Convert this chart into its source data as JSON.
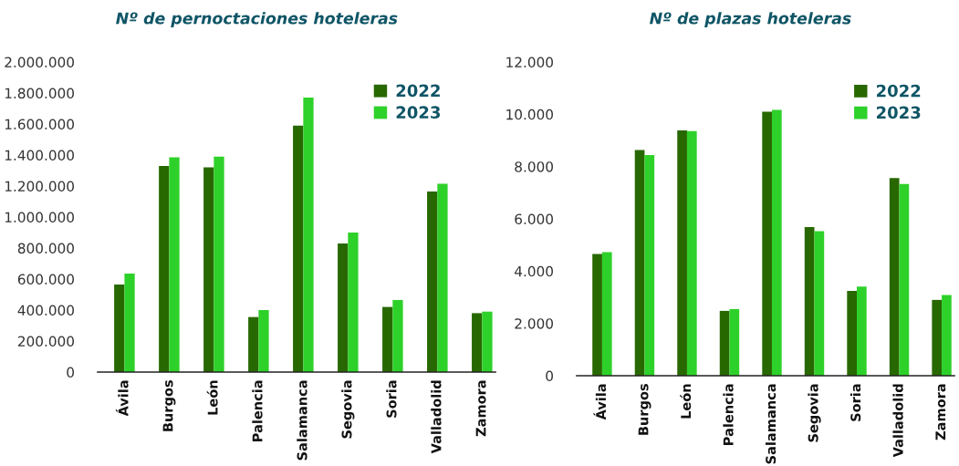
{
  "chart_data": [
    {
      "type": "bar",
      "title": "Nº de pernoctaciones hoteleras",
      "categories": [
        "Ávila",
        "Burgos",
        "León",
        "Palencia",
        "Salamanca",
        "Segovia",
        "Soria",
        "Valladolid",
        "Zamora"
      ],
      "series": [
        {
          "name": "2022",
          "color": "#286800",
          "values": [
            565000,
            1330000,
            1320000,
            355000,
            1590000,
            830000,
            420000,
            1165000,
            380000
          ]
        },
        {
          "name": "2023",
          "color": "#2ed12a",
          "values": [
            635000,
            1385000,
            1390000,
            400000,
            1770000,
            900000,
            465000,
            1215000,
            390000
          ]
        }
      ],
      "ylim": [
        0,
        2000000
      ],
      "yticks": [
        0,
        {
          "value": 200000,
          "label": "200.000"
        },
        {
          "value": 400000,
          "label": "400.000"
        },
        {
          "value": 600000,
          "label": "600.000"
        },
        {
          "value": 800000,
          "label": "800.000"
        },
        {
          "value": 1000000,
          "label": "1.000.000"
        },
        {
          "value": 1200000,
          "label": "1.200.000"
        },
        {
          "value": 1400000,
          "label": "1.400.000"
        },
        {
          "value": 1600000,
          "label": "1.600.000"
        },
        {
          "value": 1800000,
          "label": "1.800.000"
        },
        {
          "value": 2000000,
          "label": "2.000.000"
        }
      ],
      "legend": "top right"
    },
    {
      "type": "bar",
      "title": "Nº de plazas hoteleras",
      "categories": [
        "Ávila",
        "Burgos",
        "León",
        "Palencia",
        "Salamanca",
        "Segovia",
        "Soria",
        "Valladolid",
        "Zamora"
      ],
      "series": [
        {
          "name": "2022",
          "color": "#286800",
          "values": [
            4660,
            8630,
            9380,
            2480,
            10100,
            5690,
            3240,
            7560,
            2900
          ]
        },
        {
          "name": "2023",
          "color": "#2ed12a",
          "values": [
            4730,
            8440,
            9360,
            2550,
            10170,
            5530,
            3410,
            7330,
            3090
          ]
        }
      ],
      "ylim": [
        0,
        12000
      ],
      "yticks": [
        0,
        {
          "value": 2000,
          "label": "2.000"
        },
        {
          "value": 4000,
          "label": "4.000"
        },
        {
          "value": 6000,
          "label": "6.000"
        },
        {
          "value": 8000,
          "label": "8.000"
        },
        {
          "value": 10000,
          "label": "10.000"
        },
        {
          "value": 12000,
          "label": "12.000"
        }
      ],
      "legend": "top right"
    }
  ]
}
